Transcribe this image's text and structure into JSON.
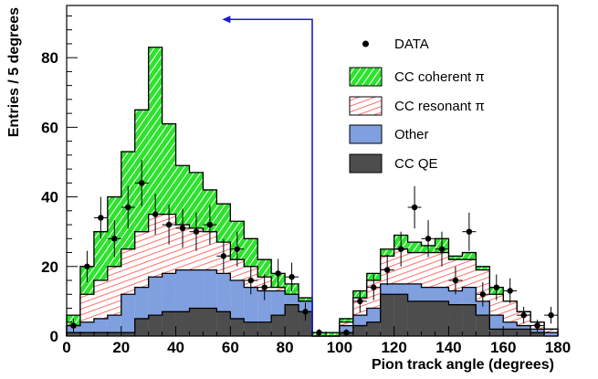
{
  "chart_data": {
    "type": "histogram",
    "xlabel": "Pion track angle (degrees)",
    "ylabel": "Entries / 5 degrees",
    "xlim": [
      0,
      180
    ],
    "ylim": [
      0,
      95
    ],
    "x_ticks": [
      0,
      20,
      40,
      60,
      80,
      100,
      120,
      140,
      160,
      180
    ],
    "y_ticks": [
      0,
      20,
      40,
      60,
      80
    ],
    "bin_edges": [
      0,
      5,
      10,
      15,
      20,
      25,
      30,
      35,
      40,
      45,
      50,
      55,
      60,
      65,
      70,
      75,
      80,
      85,
      90,
      95,
      100,
      105,
      110,
      115,
      120,
      125,
      130,
      135,
      140,
      145,
      150,
      155,
      160,
      165,
      170,
      175,
      180
    ],
    "legend_position": "top-right",
    "series": [
      {
        "name": "CC QE",
        "color": "#4d4d4d",
        "pattern": "solid",
        "values": [
          1,
          1,
          1,
          1,
          1,
          5,
          6,
          7,
          7,
          8,
          8,
          7,
          5,
          4,
          4,
          6,
          9,
          7,
          0,
          0,
          1,
          3,
          4,
          12,
          12,
          10,
          10,
          10,
          9,
          9,
          6,
          2,
          2,
          2,
          1,
          0
        ]
      },
      {
        "name": "Other",
        "color": "#7f9fdf",
        "pattern": "solid",
        "values": [
          3,
          4,
          5,
          6,
          12,
          14,
          17,
          18,
          19,
          19,
          19,
          18,
          16,
          14,
          13,
          13,
          12,
          10,
          0,
          0,
          3,
          6,
          8,
          15,
          15,
          15,
          14,
          14,
          13,
          14,
          10,
          6,
          4,
          3,
          2,
          1
        ]
      },
      {
        "name": "CC resonant π",
        "color": "#ff3030",
        "pattern": "hatch-red",
        "values": [
          3,
          12,
          16,
          20,
          25,
          30,
          35,
          35,
          32,
          31,
          30,
          27,
          22,
          20,
          17,
          14,
          12,
          10,
          0,
          0,
          4,
          11,
          16,
          23,
          25,
          24,
          24,
          24,
          22,
          22,
          19,
          12,
          10,
          7,
          4,
          2
        ]
      },
      {
        "name": "CC coherent π",
        "color": "#22cc22",
        "pattern": "hatch-green",
        "values": [
          6,
          20,
          30,
          40,
          53,
          65,
          83,
          61,
          49,
          47,
          42,
          38,
          33,
          28,
          22,
          18,
          15,
          11,
          1,
          1,
          5,
          13,
          18,
          25,
          29,
          27,
          26,
          28,
          23,
          24,
          20,
          14,
          10,
          7,
          4,
          2
        ]
      }
    ],
    "data_points": {
      "name": "DATA",
      "x": [
        2.5,
        7.5,
        12.5,
        17.5,
        22.5,
        27.5,
        32.5,
        37.5,
        42.5,
        47.5,
        52.5,
        57.5,
        62.5,
        67.5,
        72.5,
        77.5,
        82.5,
        87.5,
        92.5,
        97.5,
        102.5,
        107.5,
        112.5,
        117.5,
        122.5,
        127.5,
        132.5,
        137.5,
        142.5,
        147.5,
        152.5,
        157.5,
        162.5,
        167.5,
        172.5,
        177.5
      ],
      "y": [
        3,
        20,
        34,
        28,
        37,
        44,
        35,
        32,
        31,
        30,
        32,
        23,
        25,
        16,
        14,
        18,
        17,
        7,
        1,
        0,
        1,
        10,
        14,
        19,
        25,
        37,
        28,
        25,
        16,
        30,
        12,
        14,
        13,
        6,
        3,
        6
      ],
      "err": [
        2,
        4.5,
        6,
        5.3,
        6.1,
        6.6,
        5.9,
        5.7,
        5.6,
        5.5,
        5.7,
        4.8,
        5,
        4,
        3.7,
        4.2,
        4.1,
        2.6,
        1,
        0,
        1,
        3.2,
        3.7,
        4.4,
        5,
        6.1,
        5.3,
        5,
        4,
        5.5,
        3.5,
        3.7,
        3.6,
        2.4,
        1.7,
        2.4
      ]
    },
    "annotation_arrow": {
      "direction": "left",
      "x_from": 90,
      "x_to": 57,
      "y_at": 91
    }
  }
}
